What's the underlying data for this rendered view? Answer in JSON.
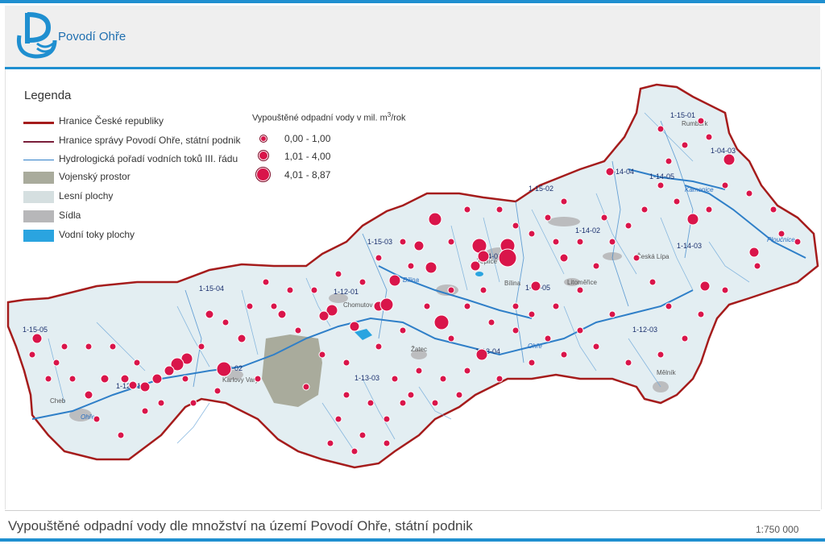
{
  "header": {
    "brand": "Povodí Ohře",
    "logo_icon": "povodi-ohre-logo-icon"
  },
  "legend": {
    "title": "Legenda",
    "items": [
      {
        "label": "Hranice České republiky",
        "kind": "line",
        "color": "#a51c1c"
      },
      {
        "label": "Hranice správy Povodí Ohře, státní podnik",
        "kind": "line",
        "color": "#7a1e3a"
      },
      {
        "label": "Hydrologická pořadí vodních toků III. řádu",
        "kind": "line",
        "color": "#2f7fc8"
      },
      {
        "label": "Vojenský prostor",
        "kind": "box",
        "color": "#a9ab9c"
      },
      {
        "label": "Lesní plochy",
        "kind": "box",
        "color": "#d5dfe0"
      },
      {
        "label": "Sídla",
        "kind": "box",
        "color": "#b7b7b9"
      },
      {
        "label": "Vodní toky plochy",
        "kind": "box",
        "color": "#2aa4e0"
      }
    ],
    "size_title": "Vypouštěné odpadní vody v mil. m",
    "size_title_sup": "3",
    "size_title_suffix": "/rok",
    "size_classes": [
      "0,00 - 1,00",
      "1,01 - 4,00",
      "4,01 - 8,87"
    ],
    "discharge_color": "#d9154a"
  },
  "map": {
    "region_labels": [
      "1-15-01",
      "1-04-03",
      "1-14-04",
      "1-14-05",
      "1-15-02",
      "1-14-02",
      "1-15-03",
      "1-14-03",
      "1-14-01",
      "1-13-05",
      "1-15-04",
      "1-12-01",
      "1-15-05",
      "1-12-03",
      "1-13-04",
      "1-13-02",
      "1-13-03",
      "1-12-01"
    ],
    "town_labels": [
      "Rumburk",
      "Teplice",
      "Česká Lípa",
      "Bílina",
      "Chomutov",
      "Žatec",
      "Karlovy Vary",
      "Cheb",
      "Mělník",
      "Litoměřice"
    ],
    "river_labels": [
      "Kamenice",
      "Ploučnice",
      "Ohře",
      "Bílina",
      "Ohře"
    ]
  },
  "footer": {
    "title": "Vypouštěné odpadní vody dle množství na území Povodí Ohře, státní podnik",
    "scale": "1:750 000"
  },
  "colors": {
    "accent": "#1f8fd0",
    "border_cr": "#a51c1c",
    "basin_fill": "#dfeaee"
  }
}
